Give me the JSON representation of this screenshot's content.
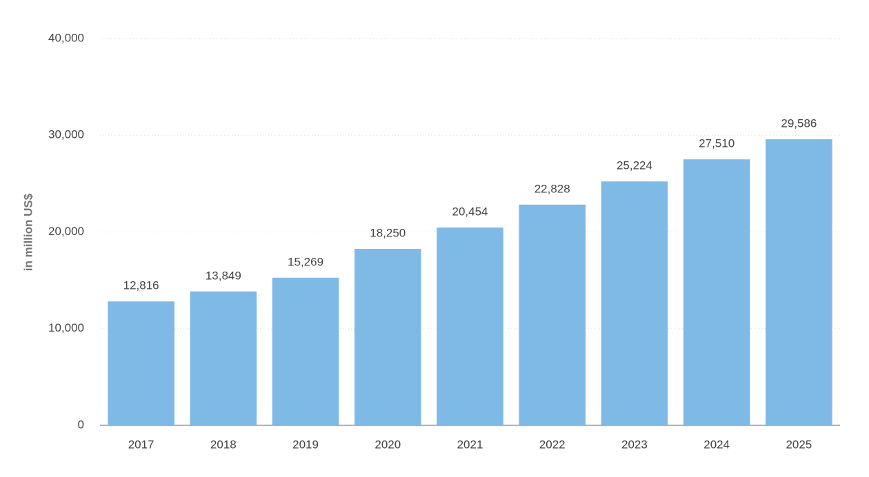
{
  "chart_data": {
    "type": "bar",
    "y_axis_label": "in million US$",
    "categories": [
      "2017",
      "2018",
      "2019",
      "2020",
      "2021",
      "2022",
      "2023",
      "2024",
      "2025"
    ],
    "values": [
      12816,
      13849,
      15269,
      18250,
      20454,
      22828,
      25224,
      27510,
      29586
    ],
    "value_labels": [
      "12,816",
      "13,849",
      "15,269",
      "18,250",
      "20,454",
      "22,828",
      "25,224",
      "27,510",
      "29,586"
    ],
    "color": "#7fbae7",
    "ylim": [
      0,
      40000
    ],
    "yticks": [
      0,
      {
        "value": 10000,
        "label": "10,000"
      },
      {
        "value": 20000,
        "label": "20,000"
      },
      {
        "value": 30000,
        "label": "30,000"
      },
      {
        "value": 40000,
        "label": "40,000"
      }
    ],
    "grid": true
  }
}
